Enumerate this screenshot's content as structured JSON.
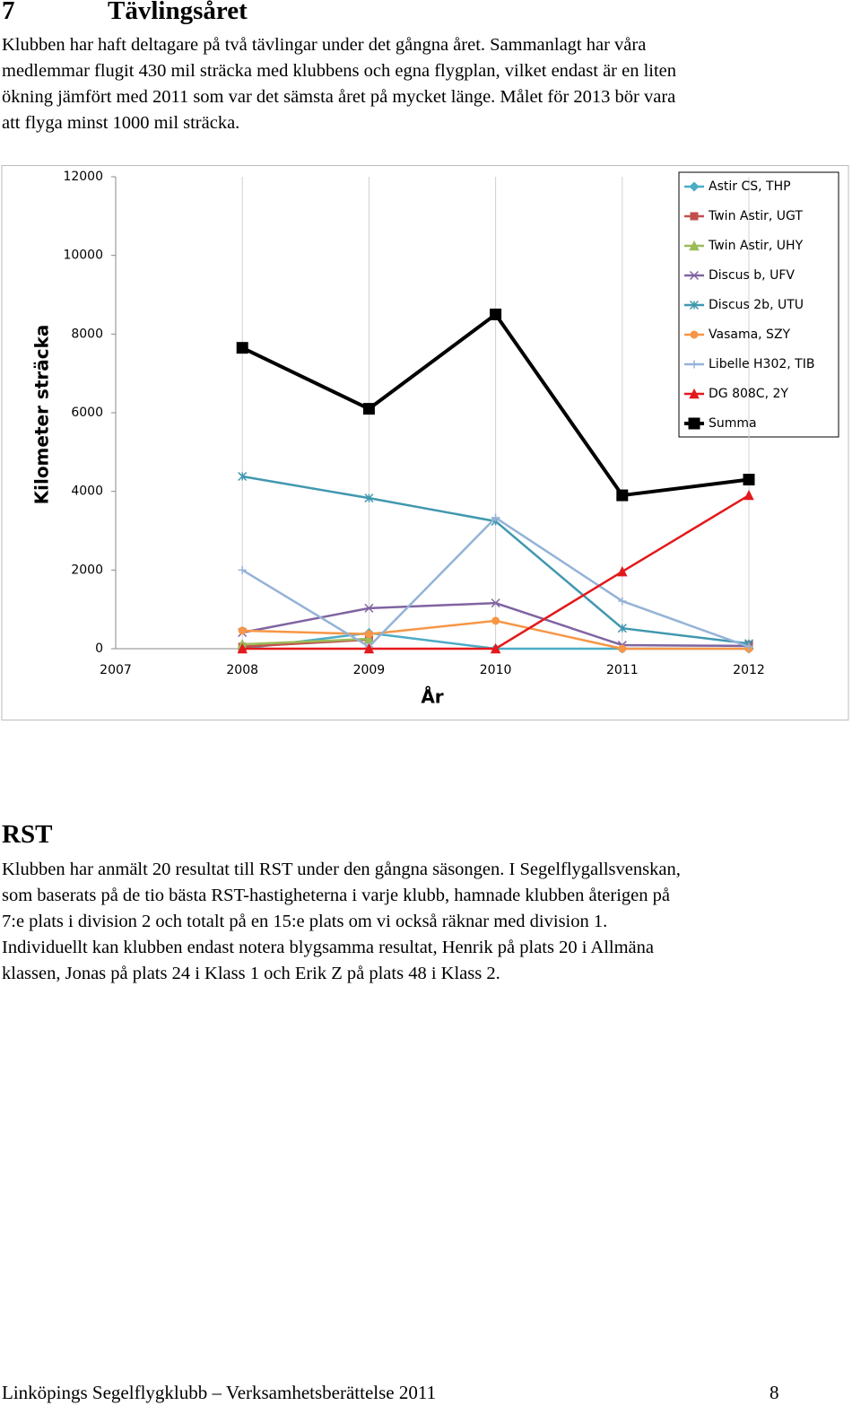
{
  "section": {
    "number": "7",
    "title": "Tävlingsåret",
    "lines": [
      "Klubben har haft deltagare på två tävlingar under det gångna året. Sammanlagt har våra",
      "medlemmar flugit 430 mil sträcka med klubbens och egna flygplan, vilket endast är en liten",
      "ökning jämfört med 2011 som var det sämsta året på mycket länge. Målet för 2013 bör vara",
      "att flyga minst 1000 mil sträcka."
    ]
  },
  "chart_data": {
    "type": "line",
    "x_label": "År",
    "y_label": "Kilometer sträcka",
    "x": [
      2008,
      2009,
      2010,
      2011,
      2012
    ],
    "xlim": [
      2007,
      2012
    ],
    "xticks": [
      2007,
      2008,
      2009,
      2010,
      2011,
      2012
    ],
    "ylim": [
      0,
      12000
    ],
    "yticks": [
      0,
      2000,
      4000,
      6000,
      8000,
      10000,
      12000
    ],
    "grid": "x",
    "legend": "upper right",
    "series": [
      {
        "name": "Astir CS, THP",
        "color": "#4bacc6",
        "marker": "diamond",
        "values": [
          0,
          400,
          0,
          0,
          0
        ]
      },
      {
        "name": "Twin Astir, UGT",
        "color": "#c0504d",
        "marker": "square",
        "values": [
          50,
          230,
          null,
          null,
          100
        ]
      },
      {
        "name": "Twin Astir, UHY",
        "color": "#9bbb59",
        "marker": "triangle",
        "values": [
          110,
          250,
          null,
          null,
          null
        ]
      },
      {
        "name": "Discus b, UFV",
        "color": "#8064a2",
        "marker": "x",
        "values": [
          410,
          1030,
          1160,
          90,
          70
        ]
      },
      {
        "name": "Discus 2b, UTU",
        "color": "#4198af",
        "marker": "star",
        "values": [
          4380,
          3830,
          3240,
          520,
          130
        ]
      },
      {
        "name": "Vasama, SZY",
        "color": "#f79646",
        "marker": "circle",
        "values": [
          460,
          370,
          710,
          0,
          0
        ]
      },
      {
        "name": "Libelle H302, TIB",
        "color": "#95b3d7",
        "marker": "plus",
        "values": [
          2000,
          50,
          3330,
          1210,
          50
        ]
      },
      {
        "name": "DG 808C, 2Y",
        "color": "#e3191c",
        "marker": "triangle",
        "values": [
          0,
          0,
          0,
          1960,
          3900
        ]
      },
      {
        "name": "Summa",
        "color": "#000000",
        "marker": "bigsquare",
        "values": [
          7650,
          6100,
          8500,
          3900,
          4300
        ]
      }
    ]
  },
  "rst": {
    "title": "RST",
    "lines": [
      "Klubben har anmält 20 resultat till RST under den gångna säsongen. I Segelflygallsvenskan,",
      "som baserats på de tio bästa RST-hastigheterna i varje klubb, hamnade klubben återigen på",
      "7:e plats i division 2 och totalt på en 15:e plats om vi också räknar med division 1.",
      "Individuellt kan klubben endast notera blygsamma resultat, Henrik på plats 20 i Allmäna",
      "klassen, Jonas på plats 24 i Klass 1 och Erik Z på plats 48 i Klass 2."
    ]
  },
  "footer": {
    "text": "Linköpings Segelflygklubb – Verksamhetsberättelse 2011",
    "page": "8"
  }
}
